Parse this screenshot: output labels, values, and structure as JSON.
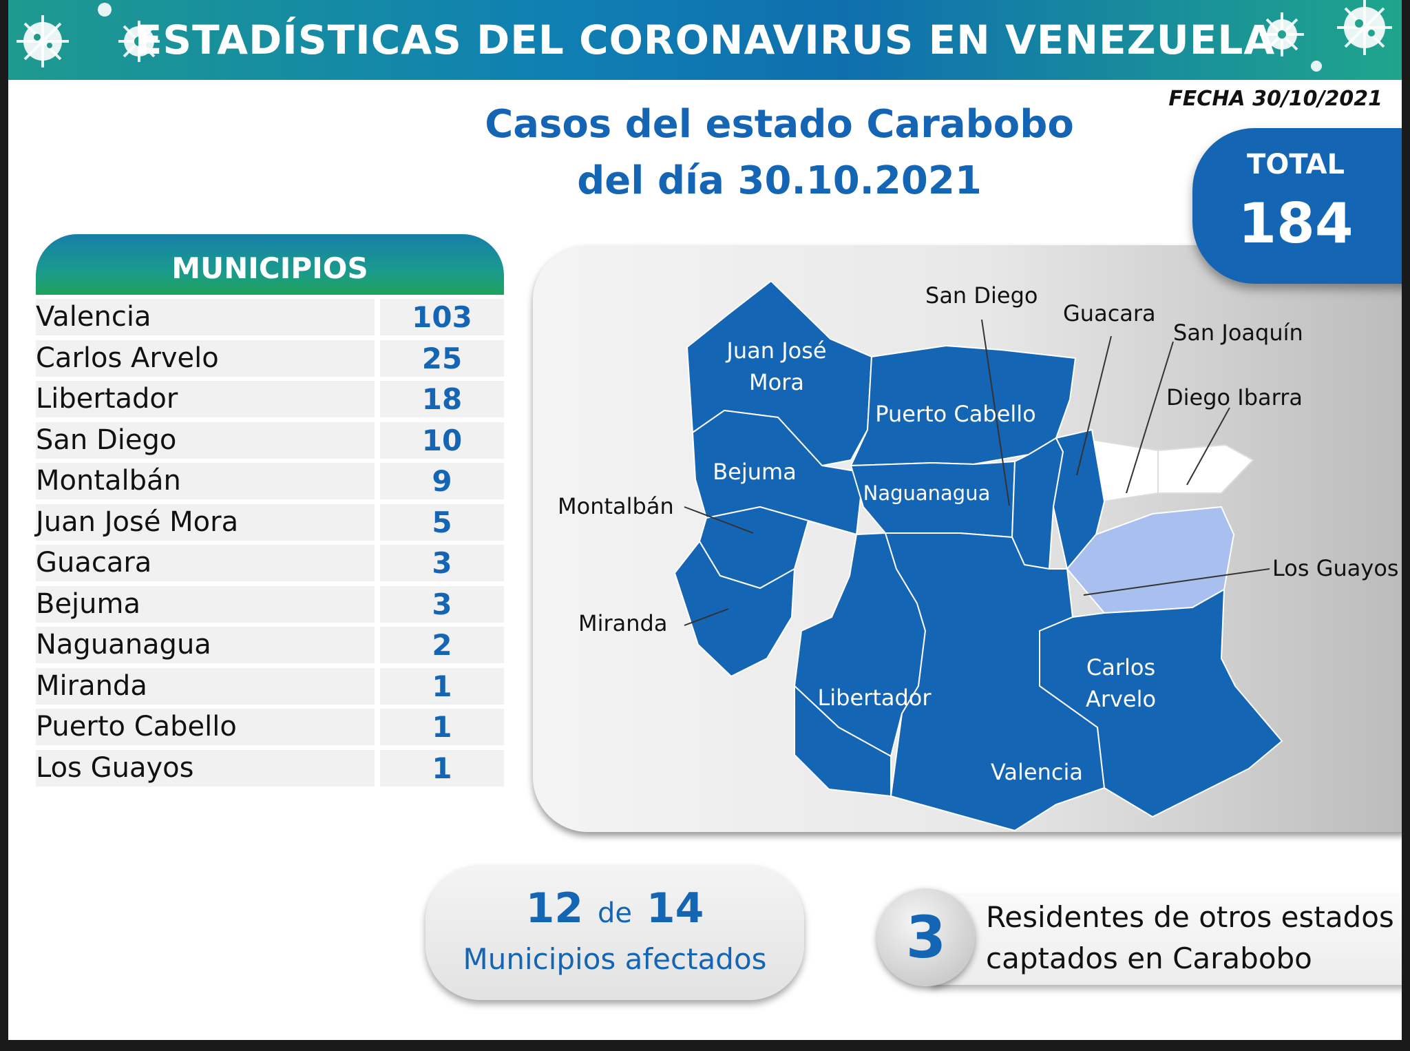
{
  "banner": {
    "title": "ESTADÍSTICAS DEL CORONAVIRUS EN VENEZUELA"
  },
  "fecha": "FECHA 30/10/2021",
  "title": {
    "line1": "Casos del estado Carabobo",
    "line2": "del día 30.10.2021"
  },
  "total": {
    "label": "TOTAL",
    "value": "184"
  },
  "municipios": {
    "header": "MUNICIPIOS",
    "rows": [
      {
        "name": "Valencia",
        "count": "103"
      },
      {
        "name": "Carlos Arvelo",
        "count": "25"
      },
      {
        "name": "Libertador",
        "count": "18"
      },
      {
        "name": "San Diego",
        "count": "10"
      },
      {
        "name": "Montalbán",
        "count": "9"
      },
      {
        "name": "Juan José Mora",
        "count": "5"
      },
      {
        "name": "Guacara",
        "count": "3"
      },
      {
        "name": "Bejuma",
        "count": "3"
      },
      {
        "name": "Naguanagua",
        "count": "2"
      },
      {
        "name": "Miranda",
        "count": "1"
      },
      {
        "name": "Puerto Cabello",
        "count": "1"
      },
      {
        "name": "Los Guayos",
        "count": "1"
      }
    ]
  },
  "map": {
    "labels": {
      "juan_jose_mora_1": "Juan José",
      "juan_jose_mora_2": "Mora",
      "puerto_cabello": "Puerto Cabello",
      "bejuma": "Bejuma",
      "naguanagua": "Naguanagua",
      "montalban": "Montalbán",
      "miranda": "Miranda",
      "libertador": "Libertador",
      "valencia": "Valencia",
      "carlos_arvelo_1": "Carlos",
      "carlos_arvelo_2": "Arvelo",
      "san_diego": "San Diego",
      "guacara": "Guacara",
      "san_joaquin": "San Joaquín",
      "diego_ibarra": "Diego Ibarra",
      "los_guayos": "Los Guayos"
    },
    "colors": {
      "affected": "#1565b5",
      "unaffected": "#ffffff",
      "los_guayos": "#a9bff0"
    }
  },
  "affected": {
    "count": "12",
    "connector": "de",
    "total": "14",
    "label": "Municipios afectados"
  },
  "residents": {
    "count": "3",
    "line1": "Residentes de otros estados",
    "line2": "captados en Carabobo"
  }
}
